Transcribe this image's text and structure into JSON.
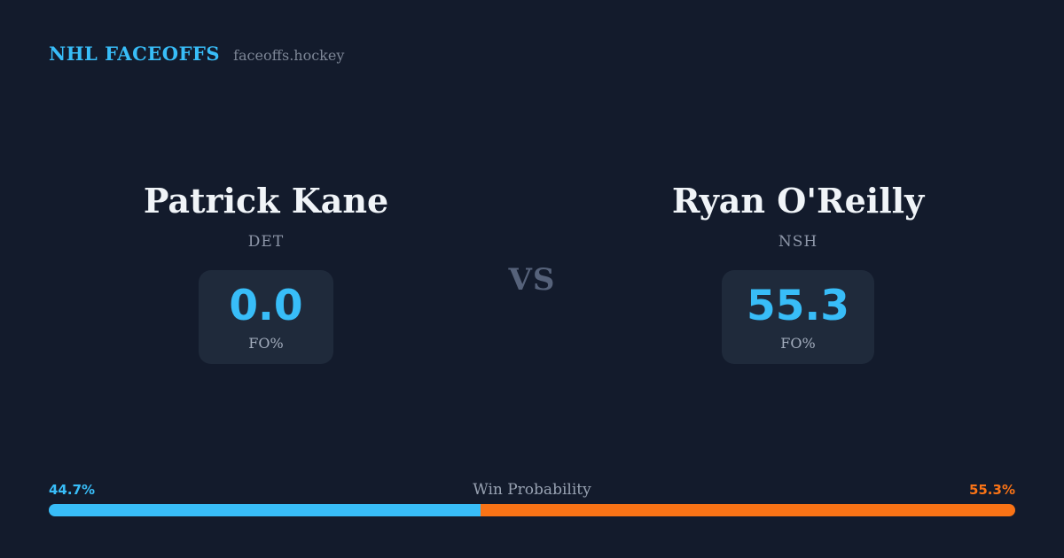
{
  "header": {
    "title": "NHL FACEOFFS",
    "site": "faceoffs.hockey"
  },
  "matchup": {
    "vs_label": "VS",
    "player1": {
      "name": "Patrick Kane",
      "team": "DET",
      "stat_value": "0.0",
      "stat_label": "FO%"
    },
    "player2": {
      "name": "Ryan O'Reilly",
      "team": "NSH",
      "stat_value": "55.3",
      "stat_label": "FO%"
    }
  },
  "win_probability": {
    "label": "Win Probability",
    "left_pct_label": "44.7%",
    "right_pct_label": "55.3%",
    "left_value": 44.7,
    "right_value": 55.3,
    "left_color": "#38bdf8",
    "right_color": "#f97316"
  },
  "colors": {
    "background": "#131b2c",
    "stat_box": "#1f2a3b",
    "accent_blue": "#38bdf8",
    "accent_orange": "#f97316",
    "name_text": "#f0f4f8",
    "muted_text": "#8d96a8"
  }
}
